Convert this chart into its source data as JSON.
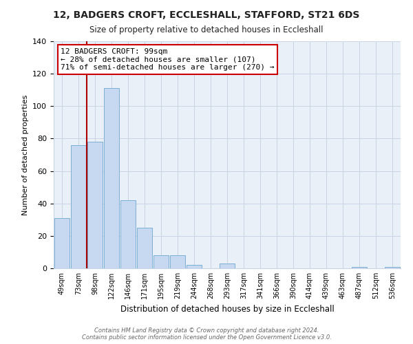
{
  "title": "12, BADGERS CROFT, ECCLESHALL, STAFFORD, ST21 6DS",
  "subtitle": "Size of property relative to detached houses in Eccleshall",
  "xlabel": "Distribution of detached houses by size in Eccleshall",
  "ylabel": "Number of detached properties",
  "bar_color": "#c6d9f0",
  "bar_edge_color": "#7bafd4",
  "bins": [
    "49sqm",
    "73sqm",
    "98sqm",
    "122sqm",
    "146sqm",
    "171sqm",
    "195sqm",
    "219sqm",
    "244sqm",
    "268sqm",
    "293sqm",
    "317sqm",
    "341sqm",
    "366sqm",
    "390sqm",
    "414sqm",
    "439sqm",
    "463sqm",
    "487sqm",
    "512sqm",
    "536sqm"
  ],
  "values": [
    31,
    76,
    78,
    111,
    42,
    25,
    8,
    8,
    2,
    0,
    3,
    0,
    0,
    0,
    0,
    0,
    0,
    0,
    1,
    0,
    1
  ],
  "property_line_color": "#aa0000",
  "annotation_line1": "12 BADGERS CROFT: 99sqm",
  "annotation_line2": "← 28% of detached houses are smaller (107)",
  "annotation_line3": "71% of semi-detached houses are larger (270) →",
  "annotation_box_color": "#ffffff",
  "annotation_box_edge_color": "#cc0000",
  "ylim": [
    0,
    140
  ],
  "yticks": [
    0,
    20,
    40,
    60,
    80,
    100,
    120,
    140
  ],
  "footer1": "Contains HM Land Registry data © Crown copyright and database right 2024.",
  "footer2": "Contains public sector information licensed under the Open Government Licence v3.0.",
  "plot_bg_color": "#eaf0f8",
  "fig_bg_color": "#ffffff",
  "grid_color": "#c8d4e4"
}
